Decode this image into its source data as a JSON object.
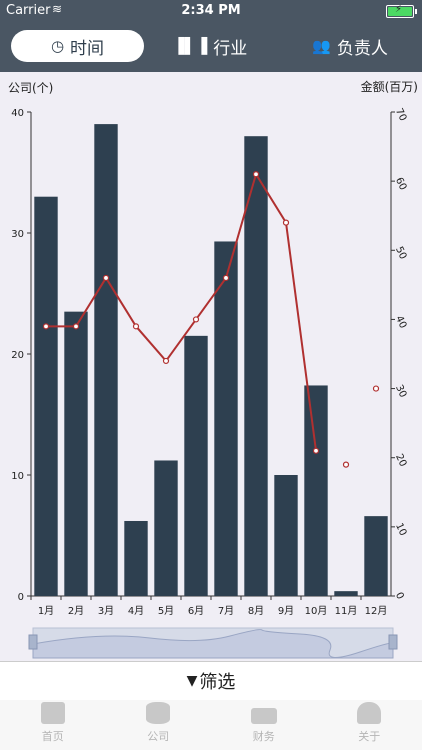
{
  "status": {
    "carrier": "Carrier",
    "time": "2:34 PM"
  },
  "segments": [
    {
      "label": "时间",
      "icon": "clock-icon"
    },
    {
      "label": "行业",
      "icon": "bar-chart-icon"
    },
    {
      "label": "负责人",
      "icon": "users-icon"
    }
  ],
  "filter_label": "筛选",
  "tabs": [
    {
      "label": "首页",
      "icon": "archive-icon"
    },
    {
      "label": "公司",
      "icon": "database-icon"
    },
    {
      "label": "财务",
      "icon": "money-icon"
    },
    {
      "label": "关于",
      "icon": "user-icon"
    }
  ],
  "chart_data": {
    "type": "bar",
    "ylabel": "公司(个)",
    "y2label": "金额(百万)",
    "categories": [
      "1月",
      "2月",
      "3月",
      "4月",
      "5月",
      "6月",
      "7月",
      "8月",
      "9月",
      "10月",
      "11月",
      "12月"
    ],
    "series": [
      {
        "type": "bar",
        "axis": "left",
        "values": [
          33,
          23.5,
          39,
          6.2,
          11.2,
          21.5,
          29.3,
          38,
          10,
          17.4,
          0.4,
          6.6
        ]
      },
      {
        "type": "line",
        "axis": "right",
        "values": [
          39,
          39,
          46,
          39,
          34,
          40,
          46,
          61,
          54,
          21,
          19,
          30
        ]
      }
    ],
    "ylim": [
      0,
      40
    ],
    "y2lim": [
      0,
      70
    ],
    "yticks": [
      0,
      10,
      20,
      30,
      40
    ],
    "y2ticks": [
      0,
      10,
      20,
      30,
      40,
      50,
      60,
      70
    ],
    "colors": {
      "bar": "#2e4050",
      "line": "#b03030"
    }
  }
}
